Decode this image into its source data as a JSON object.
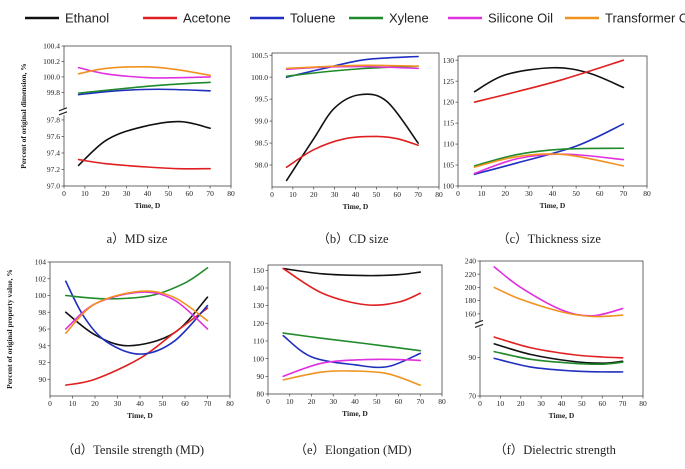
{
  "legend": [
    {
      "name": "Ethanol",
      "color": "#111111"
    },
    {
      "name": "Acetone",
      "color": "#e02020"
    },
    {
      "name": "Toluene",
      "color": "#1f2fbf"
    },
    {
      "name": "Xylene",
      "color": "#1e8a2a"
    },
    {
      "name": "Silicone Oil",
      "color": "#e030e0"
    },
    {
      "name": "Transformer Oil",
      "color": "#f0921e"
    }
  ],
  "chart_data": [
    {
      "type": "line",
      "caption": "a）MD size",
      "xlabel": "Time, D",
      "ylabel": "Percent of original dimension, %",
      "xlim": [
        0,
        80
      ],
      "xticks": [
        "0",
        "10",
        "20",
        "30",
        "40",
        "50",
        "60",
        "70",
        "80"
      ],
      "break": true,
      "upper_ylim": [
        99.6,
        100.4
      ],
      "upper_yticks": [
        "99.8",
        "100.0",
        "100.2",
        "100.4"
      ],
      "lower_ylim": [
        97.0,
        97.85
      ],
      "lower_yticks": [
        "97.0",
        "97.2",
        "97.4",
        "97.6",
        "97.8"
      ],
      "series": [
        {
          "name": "Ethanol",
          "segment": "lower",
          "x": [
            7,
            20,
            35,
            55,
            70
          ],
          "y": [
            97.25,
            97.55,
            97.7,
            97.78,
            97.7
          ]
        },
        {
          "name": "Acetone",
          "segment": "lower",
          "x": [
            7,
            20,
            40,
            55,
            70
          ],
          "y": [
            97.32,
            97.27,
            97.23,
            97.21,
            97.21
          ]
        },
        {
          "name": "Toluene",
          "segment": "upper",
          "x": [
            7,
            25,
            45,
            70
          ],
          "y": [
            99.77,
            99.82,
            99.84,
            99.82
          ]
        },
        {
          "name": "Xylene",
          "segment": "upper",
          "x": [
            7,
            25,
            45,
            70
          ],
          "y": [
            99.79,
            99.84,
            99.89,
            99.93
          ]
        },
        {
          "name": "Silicone Oil",
          "segment": "upper",
          "x": [
            7,
            20,
            40,
            55,
            70
          ],
          "y": [
            100.12,
            100.04,
            99.99,
            99.99,
            100.0
          ]
        },
        {
          "name": "Transformer Oil",
          "segment": "upper",
          "x": [
            7,
            20,
            40,
            55,
            70
          ],
          "y": [
            100.04,
            100.11,
            100.13,
            100.09,
            100.02
          ]
        }
      ]
    },
    {
      "type": "line",
      "caption": "（b）CD size",
      "xlabel": "Time, D",
      "ylabel": "",
      "xlim": [
        0,
        80
      ],
      "xticks": [
        "0",
        "10",
        "20",
        "30",
        "40",
        "50",
        "60",
        "70",
        "80"
      ],
      "break": false,
      "ylim": [
        97.5,
        100.55
      ],
      "yticks": [
        "98.0",
        "98.5",
        "99.0",
        "99.5",
        "100.0",
        "100.5"
      ],
      "series": [
        {
          "name": "Ethanol",
          "x": [
            7,
            20,
            30,
            42,
            55,
            70
          ],
          "y": [
            97.65,
            98.6,
            99.3,
            99.6,
            99.45,
            98.5
          ]
        },
        {
          "name": "Acetone",
          "x": [
            7,
            20,
            35,
            50,
            60,
            70
          ],
          "y": [
            97.95,
            98.35,
            98.6,
            98.65,
            98.6,
            98.45
          ]
        },
        {
          "name": "Toluene",
          "x": [
            7,
            25,
            45,
            70
          ],
          "y": [
            100.0,
            100.2,
            100.4,
            100.47
          ]
        },
        {
          "name": "Xylene",
          "x": [
            7,
            25,
            45,
            70
          ],
          "y": [
            100.02,
            100.12,
            100.2,
            100.25
          ]
        },
        {
          "name": "Silicone Oil",
          "x": [
            7,
            25,
            45,
            70
          ],
          "y": [
            100.18,
            100.23,
            100.24,
            100.2
          ]
        },
        {
          "name": "Transformer Oil",
          "x": [
            7,
            25,
            45,
            70
          ],
          "y": [
            100.2,
            100.24,
            100.27,
            100.25
          ]
        }
      ]
    },
    {
      "type": "line",
      "caption": "（c）Thickness size",
      "xlabel": "Time, D",
      "ylabel": "",
      "xlim": [
        0,
        80
      ],
      "xticks": [
        "0",
        "10",
        "20",
        "30",
        "40",
        "50",
        "60",
        "70",
        "80"
      ],
      "break": false,
      "ylim": [
        100,
        131
      ],
      "yticks": [
        "100",
        "105",
        "110",
        "115",
        "120",
        "125",
        "130"
      ],
      "series": [
        {
          "name": "Ethanol",
          "x": [
            7,
            20,
            40,
            55,
            70
          ],
          "y": [
            122.5,
            126.5,
            128.2,
            127.0,
            123.5
          ]
        },
        {
          "name": "Acetone",
          "x": [
            7,
            25,
            45,
            70
          ],
          "y": [
            120.0,
            122.5,
            125.5,
            130.0
          ]
        },
        {
          "name": "Toluene",
          "x": [
            7,
            25,
            50,
            70
          ],
          "y": [
            102.8,
            105.5,
            109.5,
            114.8
          ]
        },
        {
          "name": "Xylene",
          "x": [
            7,
            25,
            45,
            70
          ],
          "y": [
            104.8,
            107.5,
            108.8,
            109.0
          ]
        },
        {
          "name": "Silicone Oil",
          "x": [
            7,
            25,
            45,
            70
          ],
          "y": [
            103.0,
            106.5,
            107.6,
            106.3
          ]
        },
        {
          "name": "Transformer Oil",
          "x": [
            7,
            25,
            45,
            70
          ],
          "y": [
            104.5,
            107.0,
            107.5,
            104.8
          ]
        }
      ]
    },
    {
      "type": "line",
      "caption": "（d）Tensile strength (MD)",
      "xlabel": "Time, D",
      "ylabel": "Percent of original property value, %",
      "xlim": [
        0,
        80
      ],
      "xticks": [
        "0",
        "10",
        "20",
        "30",
        "40",
        "50",
        "60",
        "70",
        "80"
      ],
      "break": false,
      "ylim": [
        88,
        104
      ],
      "yticks": [
        "90",
        "92",
        "94",
        "96",
        "98",
        "100",
        "102",
        "104"
      ],
      "series": [
        {
          "name": "Ethanol",
          "x": [
            7,
            20,
            35,
            55,
            70
          ],
          "y": [
            98.0,
            95.3,
            94.0,
            95.5,
            99.8
          ]
        },
        {
          "name": "Acetone",
          "x": [
            7,
            20,
            40,
            55,
            70
          ],
          "y": [
            89.3,
            90.0,
            92.5,
            95.5,
            98.5
          ]
        },
        {
          "name": "Toluene",
          "x": [
            7,
            15,
            25,
            40,
            55,
            70
          ],
          "y": [
            101.7,
            97.5,
            94.5,
            93.0,
            94.5,
            98.8
          ]
        },
        {
          "name": "Xylene",
          "x": [
            7,
            25,
            45,
            60,
            70
          ],
          "y": [
            100.0,
            99.6,
            100.0,
            101.5,
            103.3
          ]
        },
        {
          "name": "Silicone Oil",
          "x": [
            7,
            20,
            40,
            55,
            70
          ],
          "y": [
            96.0,
            99.0,
            100.4,
            99.5,
            96.0
          ]
        },
        {
          "name": "Transformer Oil",
          "x": [
            7,
            20,
            40,
            55,
            70
          ],
          "y": [
            95.5,
            99.0,
            100.5,
            99.8,
            97.0
          ]
        }
      ]
    },
    {
      "type": "line",
      "caption": "（e）Elongation (MD)",
      "xlabel": "Time, D",
      "ylabel": "",
      "xlim": [
        0,
        80
      ],
      "xticks": [
        "0",
        "10",
        "20",
        "30",
        "40",
        "50",
        "60",
        "70",
        "80"
      ],
      "break": false,
      "ylim": [
        80,
        153
      ],
      "yticks": [
        "80",
        "90",
        "100",
        "110",
        "120",
        "130",
        "140",
        "150"
      ],
      "series": [
        {
          "name": "Ethanol",
          "x": [
            7,
            25,
            45,
            60,
            70
          ],
          "y": [
            151.0,
            148.0,
            147.0,
            147.5,
            149.0
          ]
        },
        {
          "name": "Acetone",
          "x": [
            7,
            25,
            45,
            60,
            70
          ],
          "y": [
            151.0,
            137.0,
            130.5,
            132.0,
            137.0
          ]
        },
        {
          "name": "Toluene",
          "x": [
            7,
            20,
            40,
            55,
            70
          ],
          "y": [
            113.0,
            101.0,
            96.5,
            95.5,
            103.0
          ]
        },
        {
          "name": "Xylene",
          "x": [
            7,
            25,
            45,
            70
          ],
          "y": [
            114.5,
            111.5,
            108.5,
            104.5
          ]
        },
        {
          "name": "Silicone Oil",
          "x": [
            7,
            25,
            45,
            60,
            70
          ],
          "y": [
            90.0,
            97.5,
            99.5,
            99.5,
            99.0
          ]
        },
        {
          "name": "Transformer Oil",
          "x": [
            7,
            25,
            40,
            55,
            70
          ],
          "y": [
            88.0,
            92.5,
            93.0,
            91.5,
            85.0
          ]
        }
      ]
    },
    {
      "type": "line",
      "caption": "（f）Dielectric strength",
      "xlabel": "Time, D",
      "ylabel": "",
      "xlim": [
        0,
        80
      ],
      "xticks": [
        "0",
        "10",
        "20",
        "30",
        "40",
        "50",
        "60",
        "70",
        "80"
      ],
      "break": true,
      "upper_ylim": [
        150,
        240
      ],
      "upper_yticks": [
        "160",
        "180",
        "200",
        "220",
        "240"
      ],
      "lower_ylim": [
        70,
        105
      ],
      "lower_yticks": [
        "70",
        "90"
      ],
      "series": [
        {
          "name": "Ethanol",
          "segment": "lower",
          "x": [
            7,
            25,
            45,
            60,
            70
          ],
          "y": [
            97.0,
            91.5,
            88.0,
            87.0,
            88.0
          ]
        },
        {
          "name": "Acetone",
          "segment": "lower",
          "x": [
            7,
            25,
            45,
            60,
            70
          ],
          "y": [
            100.5,
            95.0,
            91.5,
            90.2,
            89.8
          ]
        },
        {
          "name": "Toluene",
          "segment": "lower",
          "x": [
            7,
            25,
            45,
            60,
            70
          ],
          "y": [
            89.5,
            85.0,
            83.0,
            82.5,
            82.5
          ]
        },
        {
          "name": "Xylene",
          "segment": "lower",
          "x": [
            7,
            25,
            45,
            60,
            70
          ],
          "y": [
            93.0,
            89.0,
            87.0,
            86.5,
            87.5
          ]
        },
        {
          "name": "Silicone Oil",
          "segment": "upper",
          "x": [
            7,
            20,
            40,
            55,
            70
          ],
          "y": [
            231,
            200,
            166,
            157,
            168
          ]
        },
        {
          "name": "Transformer Oil",
          "segment": "upper",
          "x": [
            7,
            20,
            40,
            55,
            70
          ],
          "y": [
            200,
            182,
            163,
            156,
            158
          ]
        }
      ]
    }
  ]
}
